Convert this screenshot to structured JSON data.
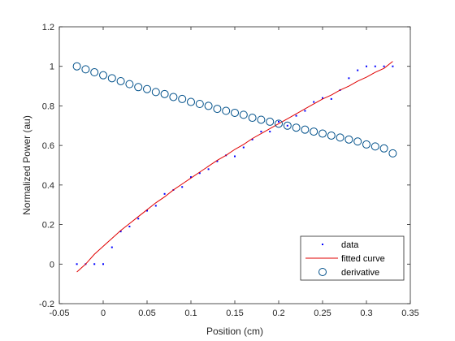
{
  "colors": {
    "data": "#0000ff",
    "fitted_curve": "#e00000",
    "derivative": "#00508a",
    "axis": "#262626",
    "background": "#ffffff"
  },
  "chart_data": {
    "type": "scatter",
    "title": "",
    "xlabel": "Position (cm)",
    "ylabel": "Normalized Power (au)",
    "xlim": [
      -0.05,
      0.35
    ],
    "ylim": [
      -0.2,
      1.2
    ],
    "xticks": [
      "-0.05",
      "0",
      "0.05",
      "0.1",
      "0.15",
      "0.2",
      "0.25",
      "0.3",
      "0.35"
    ],
    "yticks": [
      "-0.2",
      "0",
      "0.2",
      "0.4",
      "0.6",
      "0.8",
      "1",
      "1.2"
    ],
    "grid": false,
    "legend_position": "bottom-right",
    "series": [
      {
        "name": "data",
        "style": "dots",
        "x": [
          -0.03,
          -0.02,
          -0.01,
          0.0,
          0.01,
          0.02,
          0.03,
          0.04,
          0.05,
          0.06,
          0.07,
          0.08,
          0.09,
          0.1,
          0.11,
          0.12,
          0.13,
          0.14,
          0.15,
          0.16,
          0.17,
          0.18,
          0.19,
          0.2,
          0.21,
          0.22,
          0.23,
          0.24,
          0.25,
          0.26,
          0.27,
          0.28,
          0.29,
          0.3,
          0.31,
          0.32,
          0.33
        ],
        "y": [
          0.0,
          0.0,
          0.0,
          0.0,
          0.085,
          0.165,
          0.19,
          0.23,
          0.27,
          0.295,
          0.355,
          0.375,
          0.39,
          0.44,
          0.46,
          0.48,
          0.52,
          0.55,
          0.545,
          0.59,
          0.63,
          0.67,
          0.67,
          0.72,
          0.7,
          0.75,
          0.775,
          0.82,
          0.84,
          0.835,
          0.88,
          0.94,
          0.98,
          1.0,
          1.0,
          1.0,
          1.0
        ]
      },
      {
        "name": "fitted curve",
        "style": "line",
        "x": [
          -0.03,
          -0.02,
          -0.01,
          0.0,
          0.01,
          0.02,
          0.03,
          0.04,
          0.05,
          0.06,
          0.07,
          0.08,
          0.09,
          0.1,
          0.11,
          0.12,
          0.13,
          0.14,
          0.15,
          0.16,
          0.17,
          0.18,
          0.19,
          0.2,
          0.21,
          0.22,
          0.23,
          0.24,
          0.25,
          0.26,
          0.27,
          0.28,
          0.29,
          0.3,
          0.31,
          0.32,
          0.33
        ],
        "y": [
          -0.04,
          0.0,
          0.05,
          0.09,
          0.13,
          0.17,
          0.205,
          0.24,
          0.275,
          0.31,
          0.34,
          0.375,
          0.405,
          0.435,
          0.465,
          0.495,
          0.525,
          0.55,
          0.58,
          0.605,
          0.635,
          0.66,
          0.685,
          0.71,
          0.735,
          0.76,
          0.785,
          0.81,
          0.835,
          0.855,
          0.88,
          0.9,
          0.925,
          0.945,
          0.97,
          0.99,
          1.025
        ]
      },
      {
        "name": "derivative",
        "style": "circles",
        "x": [
          -0.03,
          -0.02,
          -0.01,
          0.0,
          0.01,
          0.02,
          0.03,
          0.04,
          0.05,
          0.06,
          0.07,
          0.08,
          0.09,
          0.1,
          0.11,
          0.12,
          0.13,
          0.14,
          0.15,
          0.16,
          0.17,
          0.18,
          0.19,
          0.2,
          0.21,
          0.22,
          0.23,
          0.24,
          0.25,
          0.26,
          0.27,
          0.28,
          0.29,
          0.3,
          0.31,
          0.32,
          0.33
        ],
        "y": [
          1.0,
          0.985,
          0.97,
          0.955,
          0.94,
          0.925,
          0.91,
          0.895,
          0.885,
          0.87,
          0.86,
          0.845,
          0.835,
          0.82,
          0.81,
          0.8,
          0.785,
          0.775,
          0.765,
          0.755,
          0.74,
          0.73,
          0.72,
          0.71,
          0.7,
          0.69,
          0.68,
          0.67,
          0.66,
          0.65,
          0.64,
          0.63,
          0.62,
          0.605,
          0.595,
          0.585,
          0.56
        ]
      }
    ]
  }
}
